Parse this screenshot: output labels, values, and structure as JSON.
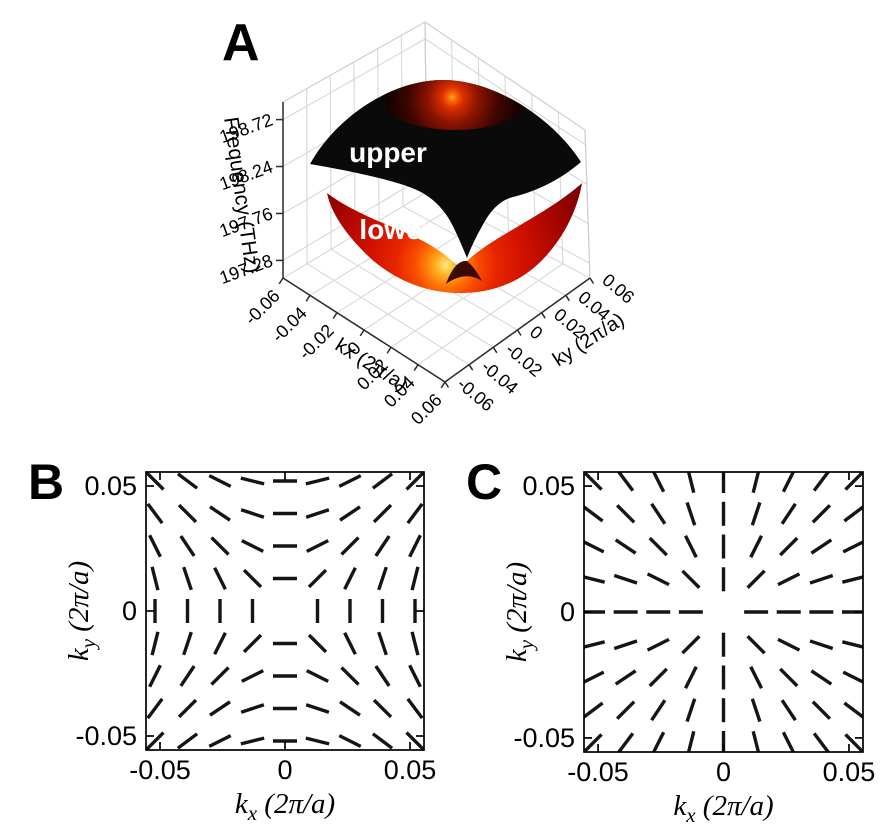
{
  "figure": {
    "background": "#ffffff",
    "panels": [
      "A",
      "B",
      "C"
    ]
  },
  "panelA": {
    "label": "A",
    "band_labels": {
      "upper": "upper",
      "lower": "lower"
    },
    "z_title": "Frequency (THz)",
    "x_title": "kx (2π/a)",
    "y_title": "ky (2π/a)",
    "z_ticks": [
      "197.28",
      "197.76",
      "198.24",
      "198.72"
    ],
    "x_ticks": [
      "-0.06",
      "-0.04",
      "-0.02",
      "0",
      "0.02",
      "0.04",
      "0.06"
    ],
    "y_ticks": [
      "-0.06",
      "-0.04",
      "-0.02",
      "0",
      "0.02",
      "0.04",
      "0.06"
    ],
    "colors": {
      "upper_surface": "#0a0a0a",
      "upper_glow_core": "#ffb347",
      "lower_surface": "#d81300",
      "lower_glow_core": "#ffe793",
      "grid": "#d8d8d8"
    }
  },
  "panelB": {
    "label": "B",
    "x_title": "kx (2π/a)",
    "y_title": "ky (2π/a)",
    "x_title_parts": {
      "pre": "k",
      "sub": "x",
      "post": " (2π/a)"
    },
    "y_title_parts": {
      "pre": "k",
      "sub": "y",
      "post": " (2π/a)"
    },
    "x_ticks": [
      "-0.05",
      "0",
      "0.05"
    ],
    "y_ticks": [
      "0.05",
      "0",
      "-0.05"
    ]
  },
  "panelC": {
    "label": "C",
    "x_title": "kx (2π/a)",
    "y_title": "ky (2π/a)",
    "x_title_parts": {
      "pre": "k",
      "sub": "x",
      "post": " (2π/a)"
    },
    "y_title_parts": {
      "pre": "k",
      "sub": "y",
      "post": " (2π/a)"
    },
    "x_ticks": [
      "-0.05",
      "0",
      "0.05"
    ],
    "y_ticks": [
      "0.05",
      "0",
      "-0.05"
    ]
  },
  "chart_data": [
    {
      "panel": "A",
      "type": "surface",
      "zlabel": "Frequency (THz)",
      "xlabel": "kx (2π/a)",
      "ylabel": "ky (2π/a)",
      "x_range": [
        -0.06,
        0.06
      ],
      "y_range": [
        -0.06,
        0.06
      ],
      "x_tick_values": [
        -0.06,
        -0.04,
        -0.02,
        0,
        0.02,
        0.04,
        0.06
      ],
      "y_tick_values": [
        -0.06,
        -0.04,
        -0.02,
        0,
        0.02,
        0.04,
        0.06
      ],
      "z_tick_values": [
        197.28,
        197.76,
        198.24,
        198.72
      ],
      "z_axis_range": [
        197.1,
        198.9
      ],
      "series": [
        {
          "name": "upper",
          "description": "upper band: dark dome-shaped surface that dips to a conical point at k=0"
        },
        {
          "name": "lower",
          "description": "lower band: bright red bowl-shaped surface that rises to a conical point at k=0"
        }
      ],
      "annotation": "the two bands touch at kx=ky=0 (Dirac-like degeneracy)"
    },
    {
      "panel": "B",
      "type": "line-field",
      "xlabel": "kx (2π/a)",
      "ylabel": "ky (2π/a)",
      "x_range": [
        -0.0556,
        0.0556
      ],
      "y_range": [
        -0.0556,
        0.0556
      ],
      "tick_values": [
        -0.05,
        0,
        0.05
      ],
      "grid_values": [
        -0.052,
        -0.039,
        -0.026,
        -0.013,
        0,
        0.013,
        0.026,
        0.039,
        0.052
      ],
      "omitted_points": [
        [
          0,
          0
        ]
      ],
      "orientation_rule_deg": "theta = 90 - atan2(ky,kx)",
      "winding": -1
    },
    {
      "panel": "C",
      "type": "line-field",
      "xlabel": "kx (2π/a)",
      "ylabel": "ky (2π/a)",
      "x_range": [
        -0.0556,
        0.0556
      ],
      "y_range": [
        -0.0556,
        0.0556
      ],
      "tick_values": [
        -0.05,
        0,
        0.05
      ],
      "grid_values": [
        -0.052,
        -0.039,
        -0.026,
        -0.013,
        0,
        0.013,
        0.026,
        0.039,
        0.052
      ],
      "omitted_points": [
        [
          0,
          0
        ]
      ],
      "orientation_rule_deg": "theta = atan2(ky,kx)",
      "winding": 1
    }
  ]
}
